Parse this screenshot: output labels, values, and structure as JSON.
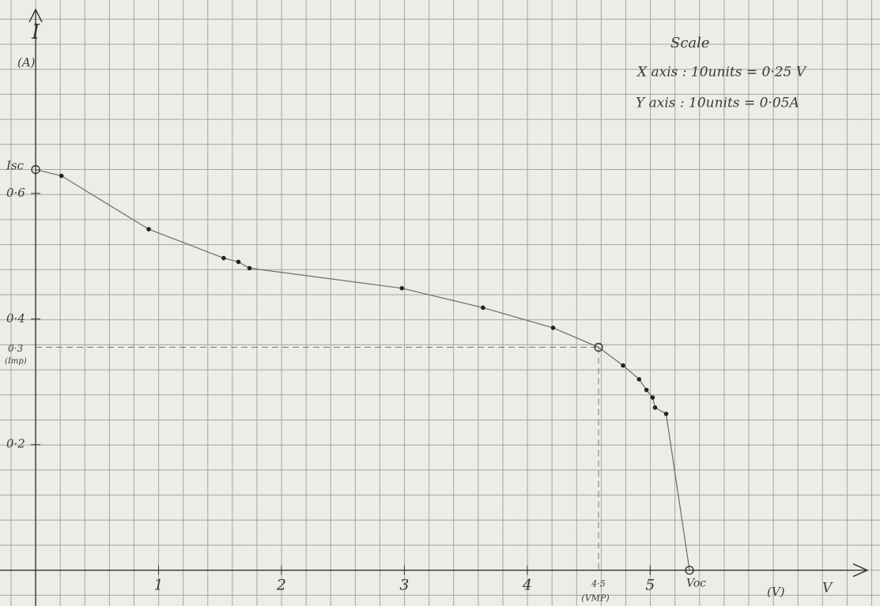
{
  "chart_data": {
    "type": "line",
    "y_axis_label": "I",
    "y_axis_unit": "(A)",
    "x_axis_label": "V",
    "x_axis_unit": "(V)",
    "scale_note": {
      "title": "Scale",
      "x": "X axis : 10units = 0·25 V",
      "y": "Y axis : 10units = 0·05A"
    },
    "x": [
      0,
      0.21,
      0.92,
      1.53,
      1.65,
      1.74,
      2.98,
      3.64,
      4.21,
      4.58,
      4.78,
      4.91,
      4.97,
      5.02,
      5.04,
      5.13,
      5.32
    ],
    "series": [
      {
        "color": "#6a6a6a",
        "values": [
          0.638,
          0.628,
          0.543,
          0.497,
          0.491,
          0.481,
          0.449,
          0.418,
          0.386,
          0.355,
          0.326,
          0.304,
          0.287,
          0.275,
          0.259,
          0.249,
          0
        ]
      }
    ],
    "xlim": [
      -0.29,
      6.87
    ],
    "ylim": [
      -0.057,
      0.908
    ],
    "xticks": [
      1,
      2,
      3,
      4,
      5
    ],
    "yticks": [
      {
        "value": 0.2,
        "label": "0·2"
      },
      {
        "value": 0.4,
        "label": "0·4"
      },
      {
        "value": 0.6,
        "label": "0·6"
      }
    ],
    "annotations": {
      "isc": "Isc",
      "voc": "Voc",
      "vmp": "4·5",
      "vmp_label": "(VMP)",
      "imp": "0·3",
      "imp_label": "(Imp)"
    }
  }
}
